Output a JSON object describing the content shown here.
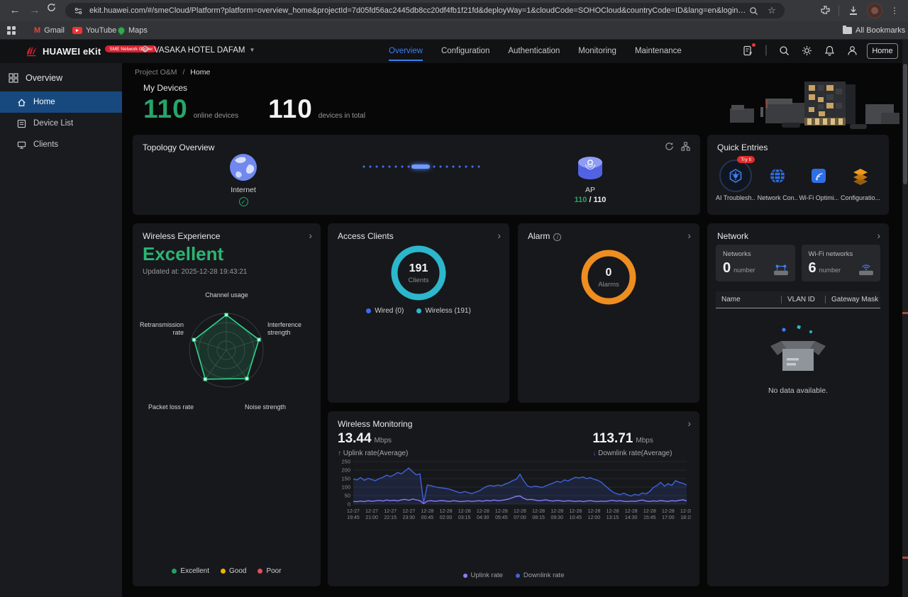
{
  "colors": {
    "accent_blue": "#3f7ef0",
    "accent_green": "#27a56a",
    "status_green": "#2bb573"
  },
  "browser": {
    "url": "ekit.huawei.com/#/smeCloud/Platform?platform=overview_home&projectId=7d05fd56ac2445db8cc20df4fb1f21fd&deployWay=1&cloudCode=SOHOCloud&countryCode=ID&lang=en&loginFlag=y&loginFlag=...",
    "bookmarks": [
      "Gmail",
      "YouTube",
      "Maps"
    ],
    "all_bookmarks": "All Bookmarks"
  },
  "app_header": {
    "brand": "HUAWEI eKit",
    "brand_badge": "SME Network Center",
    "site_name": "VASAKA HOTEL DAFAM",
    "nav": [
      "Overview",
      "Configuration",
      "Authentication",
      "Monitoring",
      "Maintenance"
    ],
    "home_button": "Home"
  },
  "sidebar": {
    "title": "Overview",
    "items": [
      {
        "label": "Home",
        "active": true
      },
      {
        "label": "Device List",
        "active": false
      },
      {
        "label": "Clients",
        "active": false
      }
    ]
  },
  "breadcrumb": {
    "parent": "Project O&M",
    "sep": "/",
    "current": "Home"
  },
  "my_devices": {
    "title": "My Devices",
    "online_value": "110",
    "online_label": "online devices",
    "total_value": "110",
    "total_label": "devices in total"
  },
  "topology": {
    "title": "Topology Overview",
    "internet_label": "Internet",
    "ap_label": "AP",
    "ap_online": "110",
    "ap_sep": " / ",
    "ap_total": "110"
  },
  "quick_entries": {
    "title": "Quick Entries",
    "try_badge": "Try It",
    "items": [
      "AI Troublesh...",
      "Network Con...",
      "Wi-Fi Optimi...",
      "Configuratio..."
    ]
  },
  "wireless_experience": {
    "title": "Wireless Experience",
    "status": "Excellent",
    "updated": "Updated at: 2025-12-28 19:43:21"
  },
  "access_clients": {
    "title": "Access Clients",
    "legend": [
      "Wired (0)",
      "Wireless (191)"
    ]
  },
  "alarm": {
    "title": "Alarm"
  },
  "network": {
    "title": "Network",
    "cards": [
      {
        "label": "Networks",
        "value": "0",
        "unit": "number"
      },
      {
        "label": "Wi-Fi networks",
        "value": "6",
        "unit": "number"
      }
    ],
    "columns": [
      "Name",
      "VLAN ID",
      "Gateway Mask"
    ],
    "empty_text": "No data available."
  },
  "wireless_monitoring": {
    "title": "Wireless Monitoring",
    "uplink_value": "13.44",
    "uplink_unit": "Mbps",
    "uplink_label": "Uplink rate(Average)",
    "downlink_value": "113.71",
    "downlink_unit": "Mbps",
    "downlink_label": "Downlink rate(Average)"
  },
  "chart_data": [
    {
      "id": "experience-radar",
      "type": "radar",
      "title": "Wireless Experience",
      "axes": [
        "Channel usage",
        "Interference strength",
        "Noise strength",
        "Packet loss rate",
        "Retransmission rate"
      ],
      "values": [
        0.96,
        0.93,
        0.95,
        0.97,
        0.92
      ],
      "max": 1,
      "color": "#2ed38b",
      "legend": [
        {
          "label": "Excellent",
          "color": "#21a263"
        },
        {
          "label": "Good",
          "color": "#f0b400"
        },
        {
          "label": "Poor",
          "color": "#e34d59"
        }
      ]
    },
    {
      "id": "clients-donut",
      "type": "pie",
      "title": "Access Clients",
      "center_value": "191",
      "center_label": "Clients",
      "slices": [
        {
          "label": "Wired",
          "value": 0,
          "color": "#3a6df0"
        },
        {
          "label": "Wireless",
          "value": 191,
          "color": "#2cb7cd"
        }
      ]
    },
    {
      "id": "alarm-donut",
      "type": "pie",
      "title": "Alarm",
      "center_value": "0",
      "center_label": "Alarms",
      "slices": [
        {
          "label": "Alarms",
          "value": 0,
          "color": "#ee8d20"
        }
      ]
    },
    {
      "id": "wireless-line",
      "type": "line",
      "title": "Wireless Monitoring",
      "ylabel": "Mbps",
      "ylim": [
        0,
        250
      ],
      "yticks": [
        0,
        50,
        100,
        150,
        200,
        250
      ],
      "grid": true,
      "legend_position": "bottom",
      "xticks": [
        [
          "12-27",
          "19:45"
        ],
        [
          "12-27",
          "21:00"
        ],
        [
          "12-27",
          "22:15"
        ],
        [
          "12-27",
          "23:30"
        ],
        [
          "12-28",
          "00:45"
        ],
        [
          "12-28",
          "02:00"
        ],
        [
          "12-28",
          "03:15"
        ],
        [
          "12-28",
          "04:30"
        ],
        [
          "12-28",
          "05:45"
        ],
        [
          "12-28",
          "07:00"
        ],
        [
          "12-28",
          "08:15"
        ],
        [
          "12-28",
          "09:30"
        ],
        [
          "12-28",
          "10:45"
        ],
        [
          "12-28",
          "12:00"
        ],
        [
          "12-28",
          "13:15"
        ],
        [
          "12-28",
          "14:30"
        ],
        [
          "12-28",
          "15:45"
        ],
        [
          "12-28",
          "17:00"
        ],
        [
          "12-28",
          "18:15"
        ]
      ],
      "series": [
        {
          "name": "Uplink rate",
          "color": "#8d7cf3",
          "values": [
            16,
            14,
            18,
            15,
            20,
            17,
            19,
            22,
            18,
            24,
            20,
            23,
            19,
            25,
            28,
            22,
            30,
            25,
            20,
            3,
            18,
            20,
            17,
            19,
            21,
            18,
            16,
            20,
            18,
            15,
            17,
            19,
            16,
            18,
            20,
            17,
            22,
            19,
            24,
            20,
            22,
            26,
            30,
            38,
            46,
            48,
            34,
            26,
            28,
            24,
            20,
            22,
            25,
            20,
            18,
            22,
            19,
            17,
            20,
            18,
            16,
            19,
            15,
            18,
            20,
            17,
            15,
            18,
            16,
            19,
            22,
            18,
            20,
            17,
            15,
            18,
            16,
            20,
            24,
            18,
            16,
            19,
            17,
            21,
            18,
            16,
            20,
            18,
            22,
            26,
            19
          ]
        },
        {
          "name": "Downlink rate",
          "color": "#3e63dc",
          "values": [
            148,
            142,
            156,
            140,
            152,
            144,
            138,
            150,
            158,
            170,
            162,
            172,
            186,
            178,
            196,
            212,
            190,
            172,
            178,
            8,
            112,
            108,
            102,
            98,
            95,
            92,
            88,
            80,
            72,
            66,
            74,
            68,
            62,
            70,
            78,
            92,
            104,
            110,
            106,
            112,
            108,
            118,
            126,
            138,
            146,
            176,
            138,
            108,
            100,
            106,
            102,
            98,
            108,
            116,
            124,
            134,
            128,
            142,
            136,
            148,
            158,
            154,
            160,
            150,
            156,
            146,
            140,
            128,
            108,
            90,
            72,
            62,
            56,
            64,
            55,
            48,
            58,
            52,
            66,
            60,
            74,
            98,
            110,
            128,
            106,
            120,
            110,
            138,
            128,
            122,
            112
          ]
        }
      ]
    }
  ]
}
